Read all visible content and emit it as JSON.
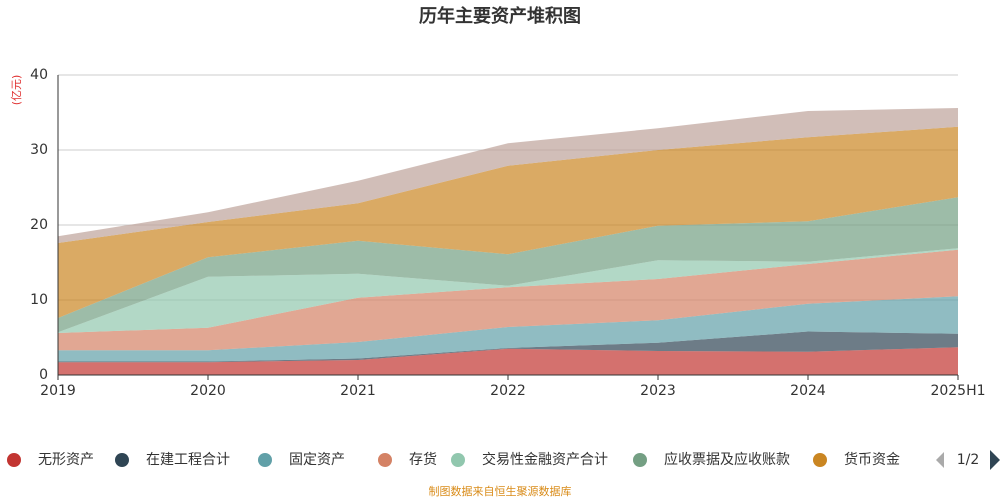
{
  "chart_data": {
    "type": "stacked-area",
    "title": "历年主要资产堆积图",
    "y_unit": "(亿元)",
    "categories": [
      "2019",
      "2020",
      "2021",
      "2022",
      "2023",
      "2024",
      "2025H1"
    ],
    "ylim": [
      0,
      40
    ],
    "yticks": [
      0,
      10,
      20,
      30,
      40
    ],
    "grid": true,
    "series": [
      {
        "name": "无形资产",
        "color": "#c23531",
        "values": [
          1.7,
          1.7,
          2.0,
          3.5,
          3.2,
          3.1,
          3.7
        ]
      },
      {
        "name": "在建工程合计",
        "color": "#2f4554",
        "values": [
          0.1,
          0.1,
          0.2,
          0.1,
          1.1,
          2.7,
          1.8
        ]
      },
      {
        "name": "固定资产",
        "color": "#61a0a8",
        "values": [
          1.5,
          1.5,
          2.2,
          2.8,
          3.0,
          3.7,
          5.0
        ]
      },
      {
        "name": "存货",
        "color": "#d48265",
        "values": [
          2.3,
          3.0,
          5.9,
          5.3,
          5.5,
          5.3,
          6.2
        ]
      },
      {
        "name": "交易性金融资产合计",
        "color": "#91c7ae",
        "values": [
          0.1,
          6.8,
          3.2,
          0.2,
          2.5,
          0.3,
          0.2
        ]
      },
      {
        "name": "应收票据及应收账款",
        "color": "#749f83",
        "values": [
          1.9,
          2.6,
          4.4,
          4.2,
          4.6,
          5.4,
          6.8
        ]
      },
      {
        "name": "货币资金",
        "color": "#ca8622",
        "values": [
          10.0,
          4.7,
          5.0,
          11.8,
          10.1,
          11.2,
          9.4
        ]
      },
      {
        "color": "#bda29a",
        "values": [
          0.9,
          1.3,
          3.0,
          3.0,
          2.9,
          3.5,
          2.5
        ]
      }
    ],
    "legend_page": "1/2",
    "source": "制图数据来自恒生聚源数据库"
  }
}
